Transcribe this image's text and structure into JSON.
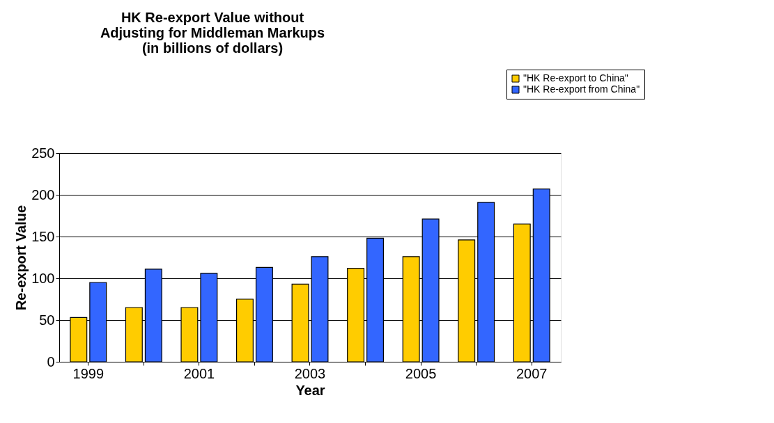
{
  "chart_data": {
    "type": "bar",
    "title": [
      "HK Re-export Value without",
      "Adjusting for Middleman Markups",
      "(in billions of dollars)"
    ],
    "xlabel": "Year",
    "ylabel": "Re-export Value",
    "categories": [
      "1999",
      null,
      "2001",
      null,
      "2003",
      null,
      "2005",
      null,
      "2007"
    ],
    "series": [
      {
        "name": "\"HK Re-export to China\"",
        "color": "#ffcc00",
        "values": [
          53,
          65,
          65,
          75,
          93,
          112,
          126,
          146,
          165
        ]
      },
      {
        "name": "\"HK Re-export from China\"",
        "color": "#3366ff",
        "values": [
          95,
          111,
          106,
          113,
          126,
          148,
          171,
          191,
          207
        ]
      }
    ],
    "ylim": [
      0,
      250
    ],
    "yticks": [
      0,
      50,
      100,
      150,
      200,
      250
    ],
    "grid": "y",
    "legend": "top right"
  }
}
